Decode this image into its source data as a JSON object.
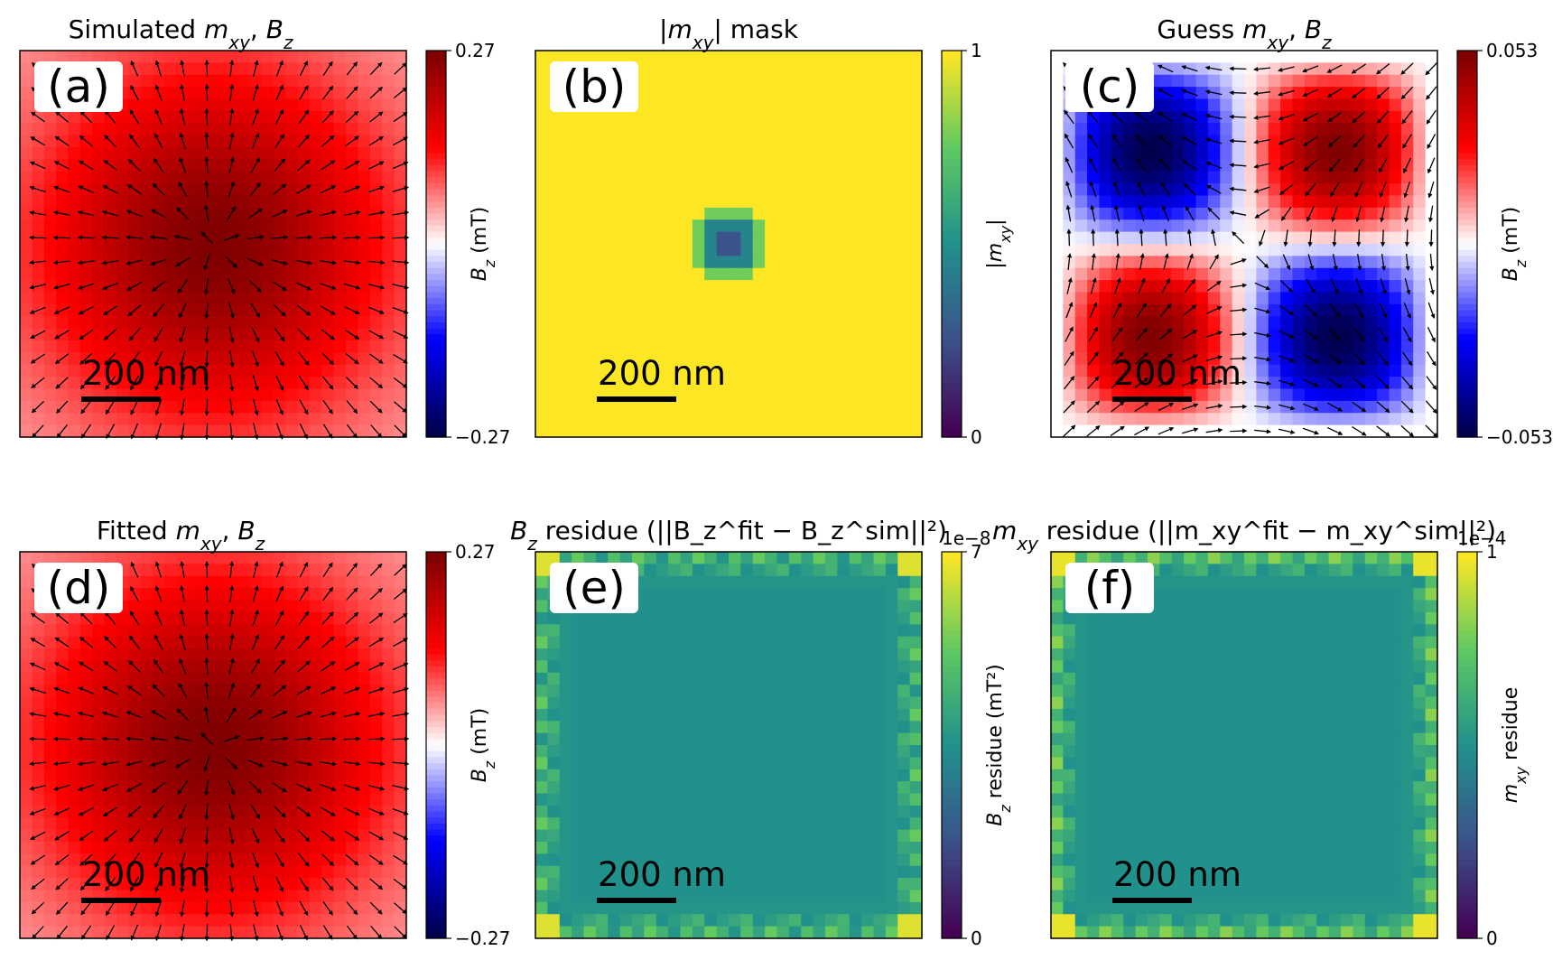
{
  "figure": {
    "scale_bar_label": "200 nm"
  },
  "colormaps": {
    "seismic": [
      "#00004c",
      "#0000ff",
      "#ffffff",
      "#ff0000",
      "#7f0000"
    ],
    "viridis": [
      "#440154",
      "#3b528b",
      "#21918c",
      "#5ec962",
      "#fde725"
    ]
  },
  "chart_data": [
    {
      "id": "a",
      "type": "heatmap",
      "field": "gaussian",
      "arrows": "radial-out",
      "label": "(a)",
      "title": {
        "pre": "Simulated ",
        "m": "m",
        "msub": "xy",
        "mid": ", ",
        "b": "B",
        "bsub": "z",
        "post": ""
      },
      "colormap": "seismic",
      "clim": [
        -0.27,
        0.27
      ],
      "colorbar": {
        "ticks": [
          "0.27",
          "−0.27"
        ],
        "label_main": "B",
        "label_sub": "z",
        "label_rest": " (mT)",
        "offset": ""
      }
    },
    {
      "id": "b",
      "type": "heatmap",
      "field": "mask",
      "arrows": "none",
      "label": "(b)",
      "title": {
        "pre": "|",
        "m": "m",
        "msub": "xy",
        "mid": "| mask",
        "b": "",
        "bsub": "",
        "post": ""
      },
      "colormap": "viridis",
      "clim": [
        0,
        1
      ],
      "colorbar": {
        "ticks": [
          "1",
          "0"
        ],
        "label_main": "|m",
        "label_sub": "xy",
        "label_rest": "|",
        "offset": ""
      }
    },
    {
      "id": "c",
      "type": "heatmap",
      "field": "quadrupole",
      "arrows": "quadrupole",
      "label": "(c)",
      "title": {
        "pre": "Guess ",
        "m": "m",
        "msub": "xy",
        "mid": ", ",
        "b": "B",
        "bsub": "z",
        "post": ""
      },
      "colormap": "seismic",
      "clim": [
        -0.053,
        0.053
      ],
      "colorbar": {
        "ticks": [
          "0.053",
          "−0.053"
        ],
        "label_main": "B",
        "label_sub": "z",
        "label_rest": " (mT)",
        "offset": ""
      }
    },
    {
      "id": "d",
      "type": "heatmap",
      "field": "gaussian",
      "arrows": "radial-out",
      "label": "(d)",
      "title": {
        "pre": "Fitted ",
        "m": "m",
        "msub": "xy",
        "mid": ", ",
        "b": "B",
        "bsub": "z",
        "post": ""
      },
      "colormap": "seismic",
      "clim": [
        -0.27,
        0.27
      ],
      "colorbar": {
        "ticks": [
          "0.27",
          "−0.27"
        ],
        "label_main": "B",
        "label_sub": "z",
        "label_rest": " (mT)",
        "offset": ""
      }
    },
    {
      "id": "e",
      "type": "heatmap",
      "field": "edge-residue-b",
      "arrows": "none",
      "label": "(e)",
      "title": {
        "pre": "",
        "m": "",
        "msub": "",
        "mid": "",
        "b": "B",
        "bsub": "z",
        "post": " residue (||B_z^fit − B_z^sim||²)"
      },
      "colormap": "viridis",
      "clim": [
        0,
        7
      ],
      "colorbar": {
        "ticks": [
          "7",
          "0"
        ],
        "label_main": "B",
        "label_sub": "z",
        "label_rest": " residue (mT²)",
        "offset": "1e−8"
      }
    },
    {
      "id": "f",
      "type": "heatmap",
      "field": "edge-residue-m",
      "arrows": "none",
      "label": "(f)",
      "title": {
        "pre": "",
        "m": "m",
        "msub": "xy",
        "mid": "",
        "b": "",
        "bsub": "",
        "post": " residue (||m_xy^fit − m_xy^sim||²)"
      },
      "colormap": "viridis",
      "clim": [
        0,
        1
      ],
      "colorbar": {
        "ticks": [
          "1",
          "0"
        ],
        "label_main": "m",
        "label_sub": "xy",
        "label_rest": " residue",
        "offset": "1e−4"
      }
    }
  ]
}
